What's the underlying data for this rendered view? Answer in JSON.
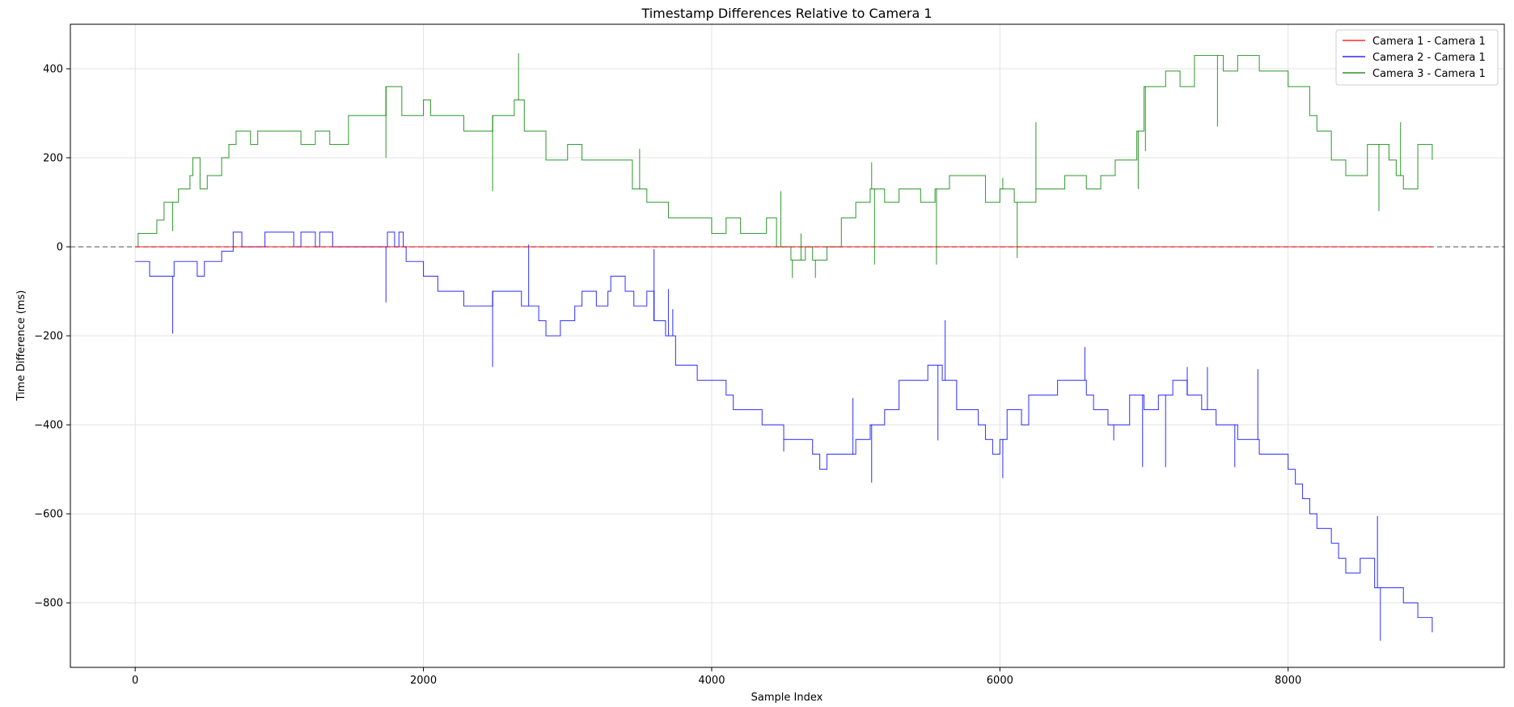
{
  "chart_data": {
    "type": "line",
    "title": "Timestamp Differences Relative to Camera 1",
    "xlabel": "Sample Index",
    "ylabel": "Time Difference (ms)",
    "xlim": [
      -450,
      9500
    ],
    "ylim": [
      -945,
      500
    ],
    "xticks": [
      0,
      2000,
      4000,
      6000,
      8000
    ],
    "yticks": [
      400,
      200,
      0,
      -200,
      -400,
      -600,
      -800
    ],
    "grid": true,
    "legend_position": "top-right",
    "reference_line": 0,
    "series": [
      {
        "name": "Camera 1 - Camera 1",
        "color": "#ff0000",
        "steps": [
          [
            0,
            0
          ],
          [
            9000,
            0
          ]
        ],
        "spikes": []
      },
      {
        "name": "Camera 2 - Camera 1",
        "color": "#0000ff",
        "steps": [
          [
            0,
            -33
          ],
          [
            100,
            -66
          ],
          [
            270,
            -33
          ],
          [
            430,
            -66
          ],
          [
            480,
            -33
          ],
          [
            600,
            -10
          ],
          [
            680,
            33
          ],
          [
            740,
            0
          ],
          [
            900,
            33
          ],
          [
            1100,
            0
          ],
          [
            1150,
            33
          ],
          [
            1250,
            0
          ],
          [
            1280,
            33
          ],
          [
            1370,
            0
          ],
          [
            1750,
            33
          ],
          [
            1800,
            0
          ],
          [
            1830,
            33
          ],
          [
            1860,
            0
          ],
          [
            1880,
            -33
          ],
          [
            2000,
            -66
          ],
          [
            2100,
            -100
          ],
          [
            2280,
            -133
          ],
          [
            2480,
            -100
          ],
          [
            2680,
            -133
          ],
          [
            2800,
            -166
          ],
          [
            2850,
            -200
          ],
          [
            2950,
            -166
          ],
          [
            3050,
            -133
          ],
          [
            3100,
            -100
          ],
          [
            3200,
            -133
          ],
          [
            3280,
            -100
          ],
          [
            3300,
            -66
          ],
          [
            3400,
            -100
          ],
          [
            3460,
            -133
          ],
          [
            3550,
            -100
          ],
          [
            3600,
            -166
          ],
          [
            3680,
            -200
          ],
          [
            3750,
            -266
          ],
          [
            3900,
            -300
          ],
          [
            4100,
            -333
          ],
          [
            4150,
            -366
          ],
          [
            4350,
            -400
          ],
          [
            4500,
            -433
          ],
          [
            4700,
            -466
          ],
          [
            4750,
            -500
          ],
          [
            4800,
            -466
          ],
          [
            5000,
            -433
          ],
          [
            5100,
            -400
          ],
          [
            5200,
            -366
          ],
          [
            5300,
            -300
          ],
          [
            5500,
            -266
          ],
          [
            5600,
            -300
          ],
          [
            5700,
            -366
          ],
          [
            5850,
            -400
          ],
          [
            5900,
            -433
          ],
          [
            5950,
            -466
          ],
          [
            6000,
            -433
          ],
          [
            6050,
            -366
          ],
          [
            6150,
            -400
          ],
          [
            6200,
            -333
          ],
          [
            6400,
            -300
          ],
          [
            6600,
            -333
          ],
          [
            6650,
            -366
          ],
          [
            6750,
            -400
          ],
          [
            6900,
            -333
          ],
          [
            7000,
            -366
          ],
          [
            7100,
            -333
          ],
          [
            7200,
            -300
          ],
          [
            7300,
            -333
          ],
          [
            7400,
            -366
          ],
          [
            7500,
            -400
          ],
          [
            7650,
            -433
          ],
          [
            7800,
            -466
          ],
          [
            8000,
            -500
          ],
          [
            8050,
            -533
          ],
          [
            8100,
            -566
          ],
          [
            8150,
            -600
          ],
          [
            8200,
            -633
          ],
          [
            8300,
            -666
          ],
          [
            8350,
            -700
          ],
          [
            8400,
            -733
          ],
          [
            8500,
            -700
          ],
          [
            8600,
            -766
          ],
          [
            8800,
            -800
          ],
          [
            8900,
            -833
          ],
          [
            9000,
            -866
          ]
        ],
        "spikes": [
          [
            260,
            -195
          ],
          [
            1740,
            -125
          ],
          [
            2480,
            -270
          ],
          [
            2730,
            5
          ],
          [
            3600,
            -5
          ],
          [
            3700,
            -95
          ],
          [
            3730,
            -140
          ],
          [
            4500,
            -460
          ],
          [
            4980,
            -340
          ],
          [
            5110,
            -530
          ],
          [
            5570,
            -435
          ],
          [
            5620,
            -165
          ],
          [
            6020,
            -520
          ],
          [
            6590,
            -225
          ],
          [
            6790,
            -435
          ],
          [
            6990,
            -495
          ],
          [
            7150,
            -495
          ],
          [
            7300,
            -270
          ],
          [
            7440,
            -270
          ],
          [
            7630,
            -495
          ],
          [
            7790,
            -275
          ],
          [
            8620,
            -605
          ],
          [
            8640,
            -885
          ]
        ]
      },
      {
        "name": "Camera 3 - Camera 1",
        "color": "#008000",
        "steps": [
          [
            0,
            0
          ],
          [
            20,
            30
          ],
          [
            150,
            60
          ],
          [
            200,
            100
          ],
          [
            300,
            130
          ],
          [
            380,
            160
          ],
          [
            400,
            200
          ],
          [
            450,
            130
          ],
          [
            500,
            160
          ],
          [
            600,
            200
          ],
          [
            650,
            230
          ],
          [
            700,
            260
          ],
          [
            800,
            230
          ],
          [
            850,
            260
          ],
          [
            1150,
            230
          ],
          [
            1250,
            260
          ],
          [
            1350,
            230
          ],
          [
            1480,
            295
          ],
          [
            1740,
            360
          ],
          [
            1850,
            295
          ],
          [
            2000,
            330
          ],
          [
            2050,
            295
          ],
          [
            2280,
            260
          ],
          [
            2480,
            295
          ],
          [
            2630,
            330
          ],
          [
            2700,
            260
          ],
          [
            2850,
            195
          ],
          [
            3000,
            230
          ],
          [
            3100,
            195
          ],
          [
            3450,
            130
          ],
          [
            3550,
            100
          ],
          [
            3700,
            65
          ],
          [
            4000,
            30
          ],
          [
            4100,
            65
          ],
          [
            4200,
            30
          ],
          [
            4380,
            65
          ],
          [
            4450,
            0
          ],
          [
            4550,
            -30
          ],
          [
            4650,
            0
          ],
          [
            4700,
            -30
          ],
          [
            4800,
            0
          ],
          [
            4900,
            65
          ],
          [
            5000,
            100
          ],
          [
            5100,
            130
          ],
          [
            5200,
            100
          ],
          [
            5300,
            130
          ],
          [
            5450,
            100
          ],
          [
            5550,
            130
          ],
          [
            5650,
            160
          ],
          [
            5900,
            100
          ],
          [
            6000,
            130
          ],
          [
            6100,
            100
          ],
          [
            6250,
            130
          ],
          [
            6450,
            160
          ],
          [
            6600,
            130
          ],
          [
            6700,
            160
          ],
          [
            6800,
            195
          ],
          [
            6950,
            260
          ],
          [
            7000,
            360
          ],
          [
            7150,
            395
          ],
          [
            7250,
            360
          ],
          [
            7350,
            430
          ],
          [
            7550,
            395
          ],
          [
            7650,
            430
          ],
          [
            7800,
            395
          ],
          [
            8000,
            360
          ],
          [
            8150,
            295
          ],
          [
            8200,
            260
          ],
          [
            8300,
            195
          ],
          [
            8400,
            160
          ],
          [
            8550,
            230
          ],
          [
            8700,
            195
          ],
          [
            8750,
            160
          ],
          [
            8800,
            130
          ],
          [
            8900,
            230
          ],
          [
            9000,
            195
          ]
        ],
        "spikes": [
          [
            260,
            35
          ],
          [
            1740,
            200
          ],
          [
            2480,
            125
          ],
          [
            2660,
            435
          ],
          [
            3500,
            220
          ],
          [
            4480,
            125
          ],
          [
            4560,
            -70
          ],
          [
            4620,
            30
          ],
          [
            4720,
            -70
          ],
          [
            5110,
            190
          ],
          [
            5130,
            -40
          ],
          [
            5560,
            -40
          ],
          [
            6020,
            155
          ],
          [
            6120,
            -25
          ],
          [
            6250,
            280
          ],
          [
            6960,
            130
          ],
          [
            7010,
            215
          ],
          [
            7510,
            270
          ],
          [
            8630,
            80
          ],
          [
            8780,
            280
          ]
        ]
      }
    ]
  }
}
